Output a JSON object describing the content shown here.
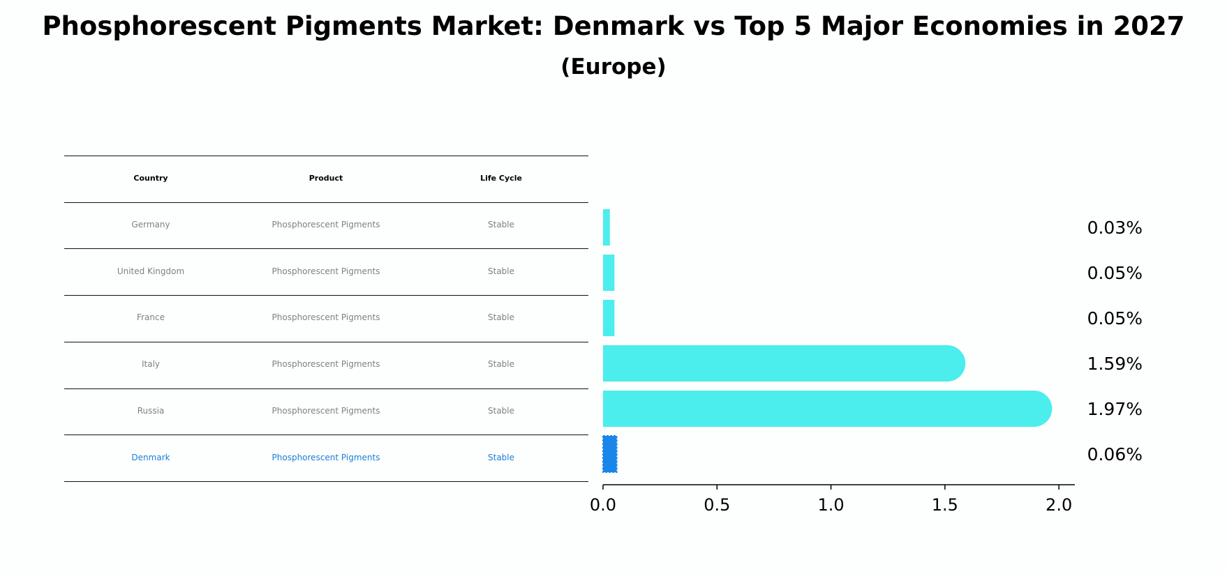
{
  "title": "Phosphorescent Pigments Market: Denmark vs Top 5 Major Economies in 2027",
  "subtitle": "(Europe)",
  "table": {
    "headers": [
      "Country",
      "Product",
      "Life Cycle"
    ],
    "rows": [
      {
        "country": "Germany",
        "product": "Phosphorescent Pigments",
        "life_cycle": "Stable",
        "highlight": false
      },
      {
        "country": "United Kingdom",
        "product": "Phosphorescent Pigments",
        "life_cycle": "Stable",
        "highlight": false
      },
      {
        "country": "France",
        "product": "Phosphorescent Pigments",
        "life_cycle": "Stable",
        "highlight": false
      },
      {
        "country": "Italy",
        "product": "Phosphorescent Pigments",
        "life_cycle": "Stable",
        "highlight": false
      },
      {
        "country": "Russia",
        "product": "Phosphorescent Pigments",
        "life_cycle": "Stable",
        "highlight": false
      },
      {
        "country": "Denmark",
        "product": "Phosphorescent Pigments",
        "life_cycle": "Stable",
        "highlight": true
      }
    ]
  },
  "chart_data": {
    "type": "bar",
    "orientation": "horizontal",
    "categories": [
      "Germany",
      "United Kingdom",
      "France",
      "Italy",
      "Russia",
      "Denmark"
    ],
    "values": [
      0.03,
      0.05,
      0.05,
      1.59,
      1.97,
      0.06
    ],
    "value_labels": [
      "0.03%",
      "0.05%",
      "0.05%",
      "1.59%",
      "1.97%",
      "0.06%"
    ],
    "highlight_category": "Denmark",
    "xlim": [
      0,
      2.07
    ],
    "xticks": [
      0.0,
      0.5,
      1.0,
      1.5,
      2.0
    ],
    "xtick_labels": [
      "0.0",
      "0.5",
      "1.0",
      "1.5",
      "2.0"
    ],
    "grid": false,
    "colors": {
      "bar": "#4beded",
      "highlight": "#1a86ea",
      "text_muted": "#808080",
      "text_highlight": "#1a7fd6"
    }
  }
}
